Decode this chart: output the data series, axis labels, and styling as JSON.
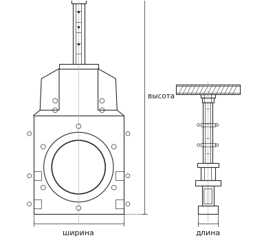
{
  "bg_color": "#ffffff",
  "line_color": "#2a2a2a",
  "dim_line_color": "#444444",
  "text_color": "#222222",
  "label_ширина": "ширина",
  "label_длина": "длина",
  "label_высота": "высота",
  "fig_width": 4.0,
  "fig_height": 3.46,
  "dpi": 100
}
